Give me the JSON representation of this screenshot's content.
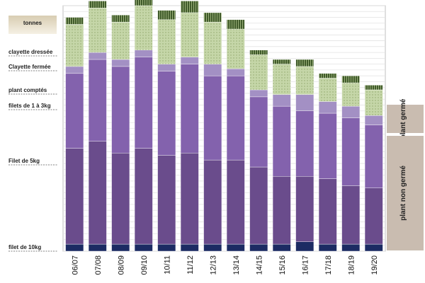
{
  "chart_data": {
    "type": "bar",
    "stacked": true,
    "unit_label": "tonnes",
    "categories": [
      "06/07",
      "07/08",
      "08/09",
      "09/10",
      "10/11",
      "11/12",
      "12/13",
      "13/14",
      "14/15",
      "15/16",
      "16/17",
      "17/18",
      "18/19",
      "19/20"
    ],
    "series": [
      {
        "name": "filet de 10kg",
        "color": "#1c2b63",
        "values": [
          3,
          3,
          3,
          3,
          3,
          3,
          3,
          3,
          3,
          3,
          4,
          3,
          3,
          3
        ]
      },
      {
        "name": "Filet de 5kg",
        "color": "#6a4c8c",
        "values": [
          41,
          44,
          39,
          41,
          38,
          39,
          36,
          36,
          33,
          29,
          28,
          28,
          25,
          24
        ]
      },
      {
        "name": "filets de 1 à 3kg",
        "color": "#8362ad",
        "values": [
          32,
          35,
          37,
          39,
          36,
          38,
          36,
          36,
          30,
          30,
          28,
          28,
          29,
          27
        ]
      },
      {
        "name": "plant comptés",
        "color": "#a390c4",
        "values": [
          3,
          3,
          3,
          3,
          3,
          3,
          5,
          3,
          3,
          5,
          7,
          5,
          5,
          4
        ]
      },
      {
        "name": "Clayette fermée",
        "color": "#c5d6a8",
        "values": [
          18,
          19,
          16,
          19,
          19,
          19,
          18,
          17,
          15,
          13,
          12,
          10,
          10,
          11
        ]
      },
      {
        "name": "clayette dressée",
        "color": "#3f5a2a",
        "values": [
          3,
          3,
          3,
          5,
          4,
          5,
          4,
          4,
          2,
          2,
          3,
          2,
          3,
          2
        ]
      }
    ],
    "side_groups": [
      {
        "label": "plant germé"
      },
      {
        "label": "plant non germé"
      }
    ],
    "grid": true,
    "legend": "left",
    "ylim": [
      0,
      105
    ]
  }
}
